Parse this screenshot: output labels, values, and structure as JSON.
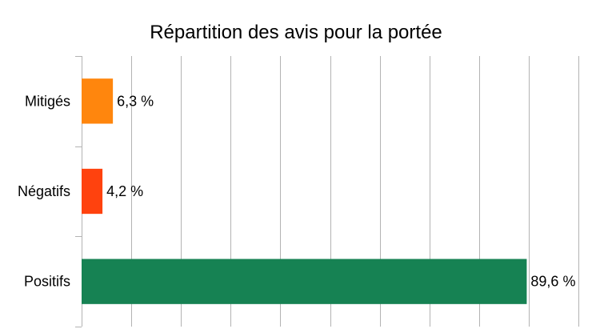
{
  "chart_data": {
    "type": "bar",
    "orientation": "horizontal",
    "title": "Répartition des avis pour la portée",
    "categories": [
      "Mitigés",
      "Négatifs",
      "Positifs"
    ],
    "values": [
      6.3,
      4.2,
      89.6
    ],
    "value_labels": [
      "6,3 %",
      "4,2 %",
      "89,6 %"
    ],
    "colors": [
      "#ff860d",
      "#ff420e",
      "#168253"
    ],
    "xlim": [
      0,
      100
    ],
    "x_grid_step": 10,
    "grid": true,
    "x_tick_labels_shown": false,
    "legend": "none"
  }
}
